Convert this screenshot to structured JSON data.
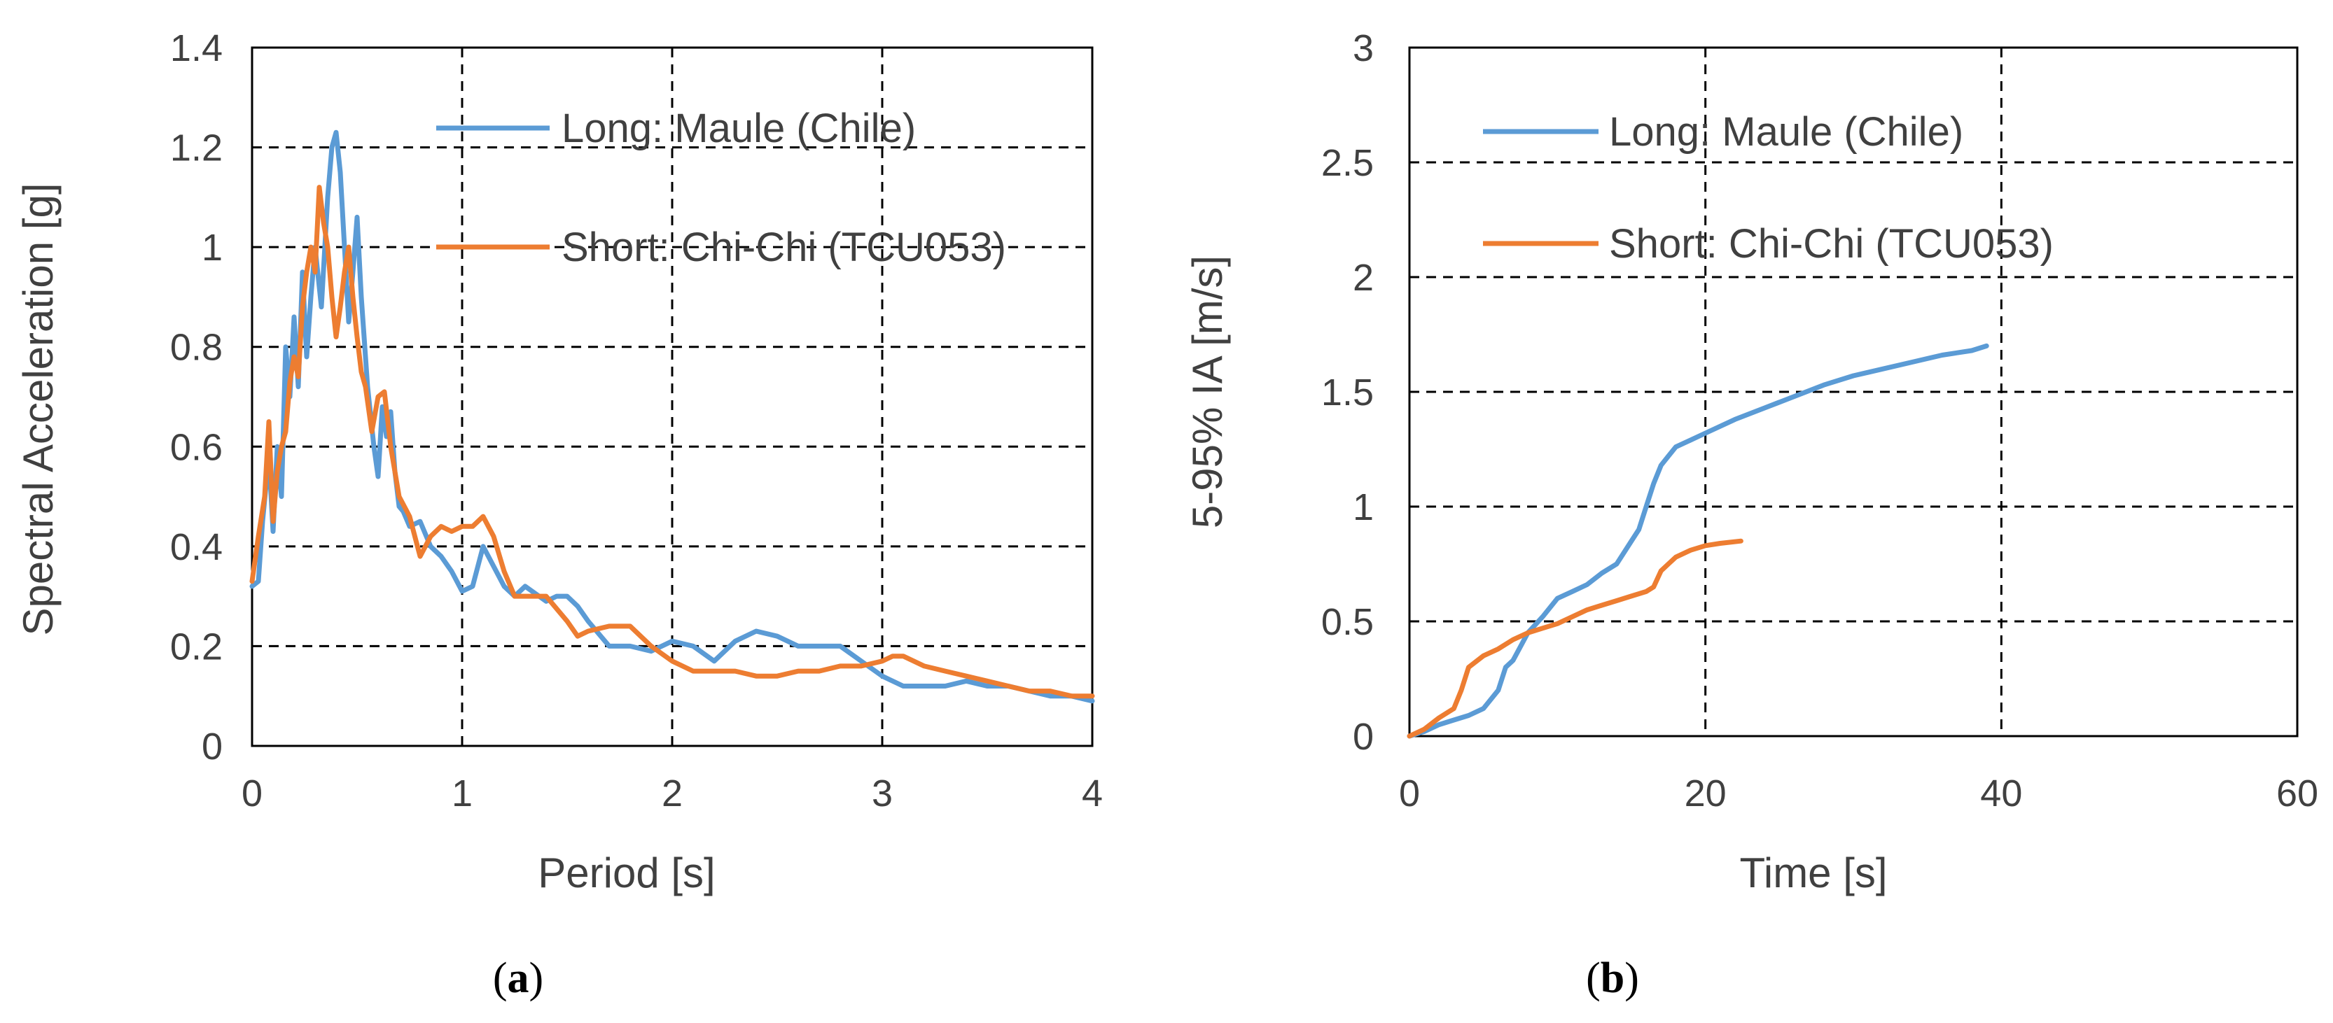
{
  "figure": {
    "panels": [
      {
        "label": "a"
      },
      {
        "label": "b"
      }
    ]
  },
  "chart_data": [
    {
      "type": "line",
      "panel": "a",
      "title": "",
      "xlabel": "Period [s]",
      "ylabel": "Spectral Acceleration [g]",
      "xlim": [
        0,
        4
      ],
      "ylim": [
        0,
        1.4
      ],
      "xticks": [
        0,
        1,
        2,
        3,
        4
      ],
      "xtick_labels": [
        "0",
        "1",
        "2",
        "3",
        "4"
      ],
      "yticks": [
        0,
        0.2,
        0.4,
        0.6,
        0.8,
        1,
        1.2,
        1.4
      ],
      "ytick_labels": [
        "0",
        "0.2",
        "0.4",
        "0.6",
        "0.8",
        "1",
        "1.2",
        "1.4"
      ],
      "grid": "dashed",
      "legend_placement": "top-right",
      "series": [
        {
          "name": "Long: Maule (Chile)",
          "color": "#5B9BD5",
          "x": [
            0,
            0.03,
            0.05,
            0.08,
            0.1,
            0.12,
            0.14,
            0.16,
            0.18,
            0.2,
            0.22,
            0.24,
            0.26,
            0.28,
            0.3,
            0.33,
            0.36,
            0.38,
            0.4,
            0.42,
            0.44,
            0.46,
            0.48,
            0.5,
            0.52,
            0.55,
            0.58,
            0.6,
            0.62,
            0.64,
            0.66,
            0.68,
            0.7,
            0.72,
            0.75,
            0.8,
            0.85,
            0.9,
            0.95,
            1.0,
            1.05,
            1.1,
            1.15,
            1.2,
            1.25,
            1.3,
            1.4,
            1.45,
            1.5,
            1.55,
            1.6,
            1.7,
            1.8,
            1.9,
            2.0,
            2.1,
            2.2,
            2.3,
            2.4,
            2.5,
            2.6,
            2.7,
            2.8,
            2.9,
            3.0,
            3.1,
            3.2,
            3.3,
            3.4,
            3.5,
            3.6,
            3.7,
            3.8,
            3.9,
            4.0
          ],
          "values": [
            0.32,
            0.33,
            0.45,
            0.58,
            0.43,
            0.6,
            0.5,
            0.8,
            0.7,
            0.86,
            0.72,
            0.95,
            0.78,
            0.9,
            1.0,
            0.88,
            1.1,
            1.2,
            1.23,
            1.15,
            1.0,
            0.85,
            0.95,
            1.06,
            0.9,
            0.72,
            0.6,
            0.54,
            0.68,
            0.62,
            0.67,
            0.55,
            0.48,
            0.47,
            0.44,
            0.45,
            0.4,
            0.38,
            0.35,
            0.31,
            0.32,
            0.4,
            0.36,
            0.32,
            0.3,
            0.32,
            0.29,
            0.3,
            0.3,
            0.28,
            0.25,
            0.2,
            0.2,
            0.19,
            0.21,
            0.2,
            0.17,
            0.21,
            0.23,
            0.22,
            0.2,
            0.2,
            0.2,
            0.17,
            0.14,
            0.12,
            0.12,
            0.12,
            0.13,
            0.12,
            0.12,
            0.11,
            0.1,
            0.1,
            0.09
          ]
        },
        {
          "name": "Short: Chi-Chi (TCU053)",
          "color": "#ED7D31",
          "x": [
            0,
            0.03,
            0.06,
            0.08,
            0.1,
            0.12,
            0.14,
            0.16,
            0.18,
            0.2,
            0.22,
            0.24,
            0.26,
            0.28,
            0.3,
            0.32,
            0.34,
            0.36,
            0.38,
            0.4,
            0.42,
            0.44,
            0.46,
            0.48,
            0.5,
            0.52,
            0.54,
            0.57,
            0.6,
            0.63,
            0.66,
            0.7,
            0.75,
            0.8,
            0.85,
            0.9,
            0.95,
            1.0,
            1.05,
            1.1,
            1.15,
            1.2,
            1.25,
            1.3,
            1.4,
            1.5,
            1.55,
            1.6,
            1.7,
            1.8,
            1.9,
            2.0,
            2.1,
            2.2,
            2.3,
            2.4,
            2.5,
            2.6,
            2.7,
            2.8,
            2.9,
            3.0,
            3.05,
            3.1,
            3.2,
            3.3,
            3.4,
            3.5,
            3.6,
            3.7,
            3.8,
            3.9,
            4.0
          ],
          "values": [
            0.33,
            0.42,
            0.5,
            0.65,
            0.45,
            0.55,
            0.6,
            0.63,
            0.73,
            0.78,
            0.74,
            0.88,
            0.95,
            1.0,
            0.95,
            1.12,
            1.05,
            1.0,
            0.9,
            0.82,
            0.88,
            0.95,
            1.0,
            0.9,
            0.82,
            0.75,
            0.72,
            0.63,
            0.7,
            0.71,
            0.6,
            0.5,
            0.46,
            0.38,
            0.42,
            0.44,
            0.43,
            0.44,
            0.44,
            0.46,
            0.42,
            0.35,
            0.3,
            0.3,
            0.3,
            0.25,
            0.22,
            0.23,
            0.24,
            0.24,
            0.2,
            0.17,
            0.15,
            0.15,
            0.15,
            0.14,
            0.14,
            0.15,
            0.15,
            0.16,
            0.16,
            0.17,
            0.18,
            0.18,
            0.16,
            0.15,
            0.14,
            0.13,
            0.12,
            0.11,
            0.11,
            0.1,
            0.1
          ]
        }
      ]
    },
    {
      "type": "line",
      "panel": "b",
      "title": "",
      "xlabel": "Time [s]",
      "ylabel": "5-95% IA [m/s]",
      "xlim": [
        0,
        60
      ],
      "ylim": [
        0,
        3
      ],
      "xticks": [
        0,
        20,
        40,
        60
      ],
      "xtick_labels": [
        "0",
        "20",
        "40",
        "60"
      ],
      "yticks": [
        0,
        0.5,
        1,
        1.5,
        2,
        2.5,
        3
      ],
      "ytick_labels": [
        "0",
        "0.5",
        "1",
        "1.5",
        "2",
        "2.5",
        "3"
      ],
      "grid": "dashed",
      "legend_placement": "top-left",
      "series": [
        {
          "name": "Long: Maule (Chile)",
          "color": "#5B9BD5",
          "x": [
            0,
            1,
            2,
            3,
            4,
            5,
            6,
            6.5,
            7,
            8,
            9,
            10,
            11,
            12,
            13,
            14,
            15,
            15.5,
            16,
            16.5,
            17,
            17.5,
            18,
            19,
            20,
            22,
            24,
            26,
            28,
            30,
            32,
            34,
            36,
            38,
            39
          ],
          "values": [
            0,
            0.02,
            0.05,
            0.07,
            0.09,
            0.12,
            0.2,
            0.3,
            0.33,
            0.45,
            0.52,
            0.6,
            0.63,
            0.66,
            0.71,
            0.75,
            0.85,
            0.9,
            1.0,
            1.1,
            1.18,
            1.22,
            1.26,
            1.29,
            1.32,
            1.38,
            1.43,
            1.48,
            1.53,
            1.57,
            1.6,
            1.63,
            1.66,
            1.68,
            1.7
          ]
        },
        {
          "name": "Short: Chi-Chi (TCU053)",
          "color": "#ED7D31",
          "x": [
            0,
            1,
            2,
            3,
            3.5,
            4,
            5,
            6,
            7,
            8,
            9,
            10,
            11,
            12,
            13,
            14,
            15,
            16,
            16.5,
            17,
            17.5,
            18,
            19,
            20,
            21,
            22.4
          ],
          "values": [
            0,
            0.03,
            0.08,
            0.12,
            0.2,
            0.3,
            0.35,
            0.38,
            0.42,
            0.45,
            0.47,
            0.49,
            0.52,
            0.55,
            0.57,
            0.59,
            0.61,
            0.63,
            0.65,
            0.72,
            0.75,
            0.78,
            0.81,
            0.83,
            0.84,
            0.85
          ]
        }
      ]
    }
  ]
}
